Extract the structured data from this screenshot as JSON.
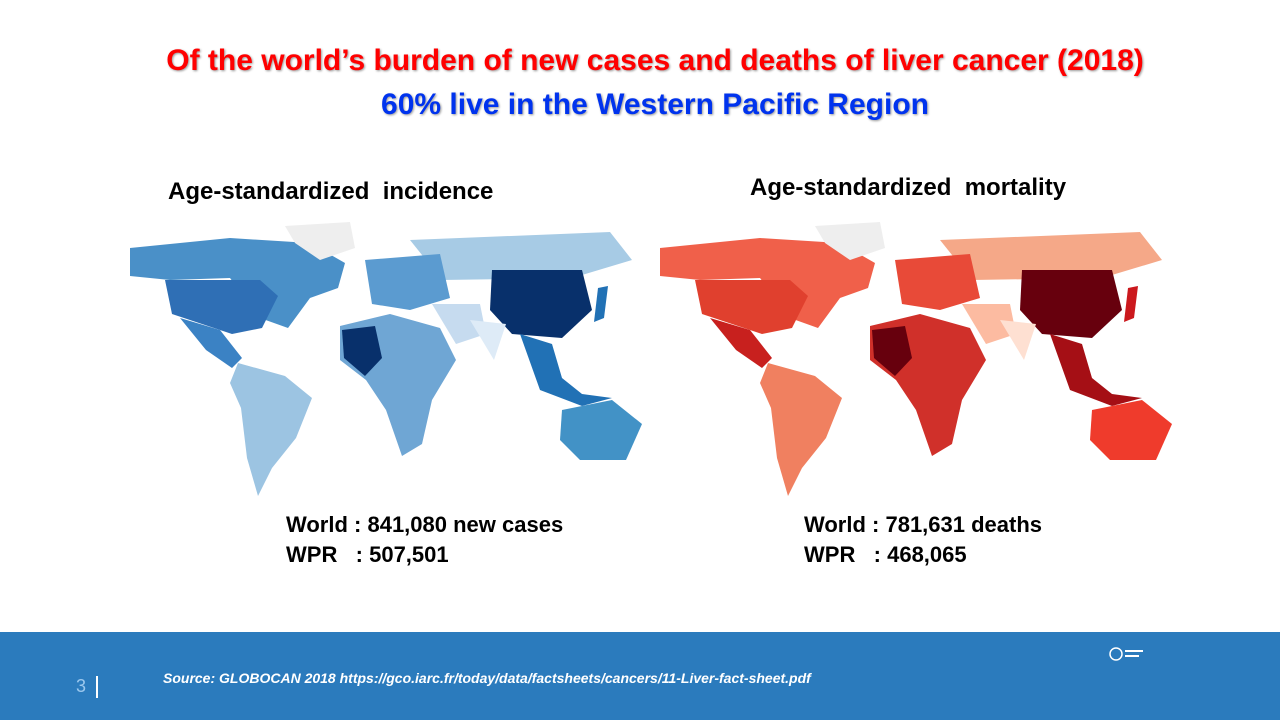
{
  "title": {
    "line1": "Of the world’s burden of new cases and deaths of liver cancer (2018)",
    "line2": "60% live in the Western Pacific Region"
  },
  "maps": [
    {
      "title": "Age-standardized  incidence",
      "stats": [
        "World : 841,080 new cases",
        "WPR   : 507,501"
      ]
    },
    {
      "title": "Age-standardized  mortality",
      "stats": [
        "World : 781,631 deaths",
        "WPR   : 468,065"
      ]
    }
  ],
  "footer": {
    "page": "3",
    "source": "Source: GLOBOCAN 2018 https://gco.iarc.fr/today/data/factsheets/cancers/11-Liver-fact-sheet.pdf"
  }
}
